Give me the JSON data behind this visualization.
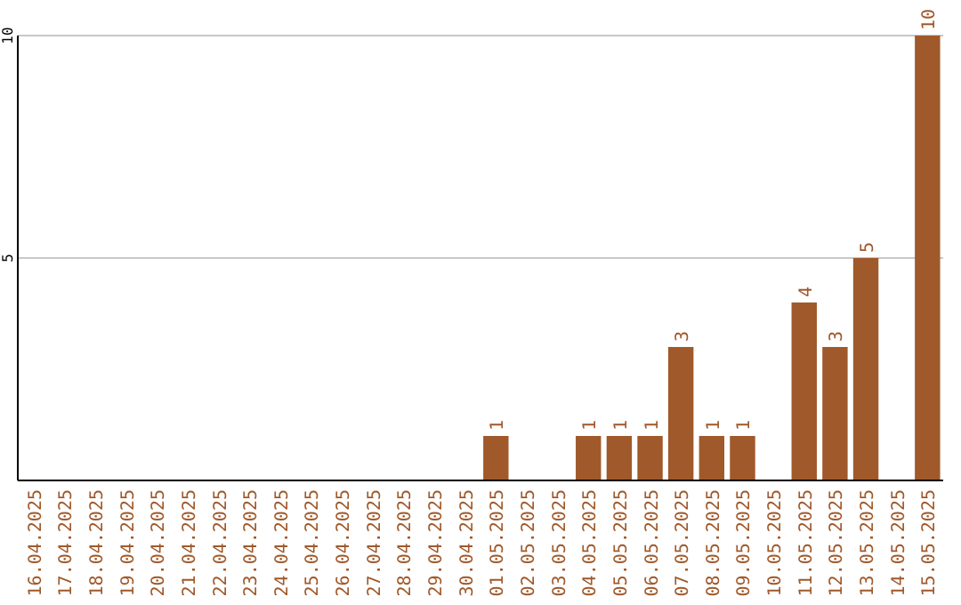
{
  "chart_data": {
    "type": "bar",
    "categories": [
      "16.04.2025",
      "17.04.2025",
      "18.04.2025",
      "19.04.2025",
      "20.04.2025",
      "21.04.2025",
      "22.04.2025",
      "23.04.2025",
      "24.04.2025",
      "25.04.2025",
      "26.04.2025",
      "27.04.2025",
      "28.04.2025",
      "29.04.2025",
      "30.04.2025",
      "01.05.2025",
      "02.05.2025",
      "03.05.2025",
      "04.05.2025",
      "05.05.2025",
      "06.05.2025",
      "07.05.2025",
      "08.05.2025",
      "09.05.2025",
      "10.05.2025",
      "11.05.2025",
      "12.05.2025",
      "13.05.2025",
      "14.05.2025",
      "15.05.2025"
    ],
    "values": [
      0,
      0,
      0,
      0,
      0,
      0,
      0,
      0,
      0,
      0,
      0,
      0,
      0,
      0,
      0,
      1,
      0,
      0,
      1,
      1,
      1,
      3,
      1,
      1,
      0,
      4,
      3,
      5,
      0,
      10
    ],
    "value_labels": [
      null,
      null,
      null,
      null,
      null,
      null,
      null,
      null,
      null,
      null,
      null,
      null,
      null,
      null,
      null,
      "1",
      null,
      null,
      "1",
      "1",
      "1",
      "3",
      "1",
      "1",
      null,
      "4",
      "3",
      "5",
      null,
      "10"
    ],
    "color": "#a0592a",
    "ylim": [
      0,
      10
    ],
    "yticks": [
      {
        "value": 0,
        "label": null
      },
      5,
      10
    ],
    "grid": "y"
  }
}
